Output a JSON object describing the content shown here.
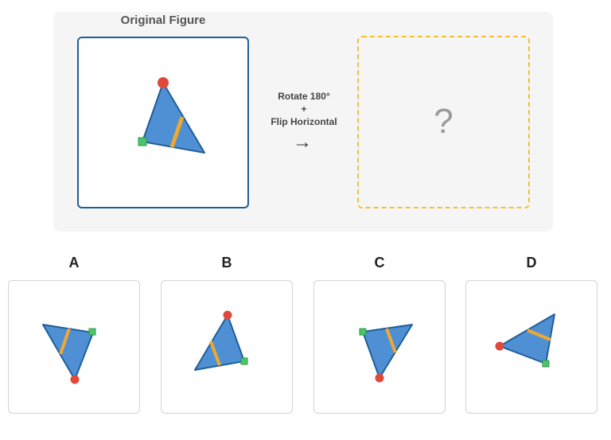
{
  "original": {
    "title": "Original Figure"
  },
  "transformation": {
    "line1": "Rotate 180°",
    "line2": "+",
    "line3": "Flip Horizontal",
    "arrow": "→"
  },
  "answer_placeholder": "?",
  "options": [
    {
      "label": "A"
    },
    {
      "label": "B"
    },
    {
      "label": "C"
    },
    {
      "label": "D"
    }
  ],
  "colors": {
    "triangle_fill": "#4f8fd4",
    "triangle_stroke": "#1f5f99",
    "stripe": "#f0a830",
    "circle_marker": "#e0483a",
    "square_marker": "#4cc46a",
    "original_border": "#1f5f99",
    "answer_border": "#f2c037"
  }
}
